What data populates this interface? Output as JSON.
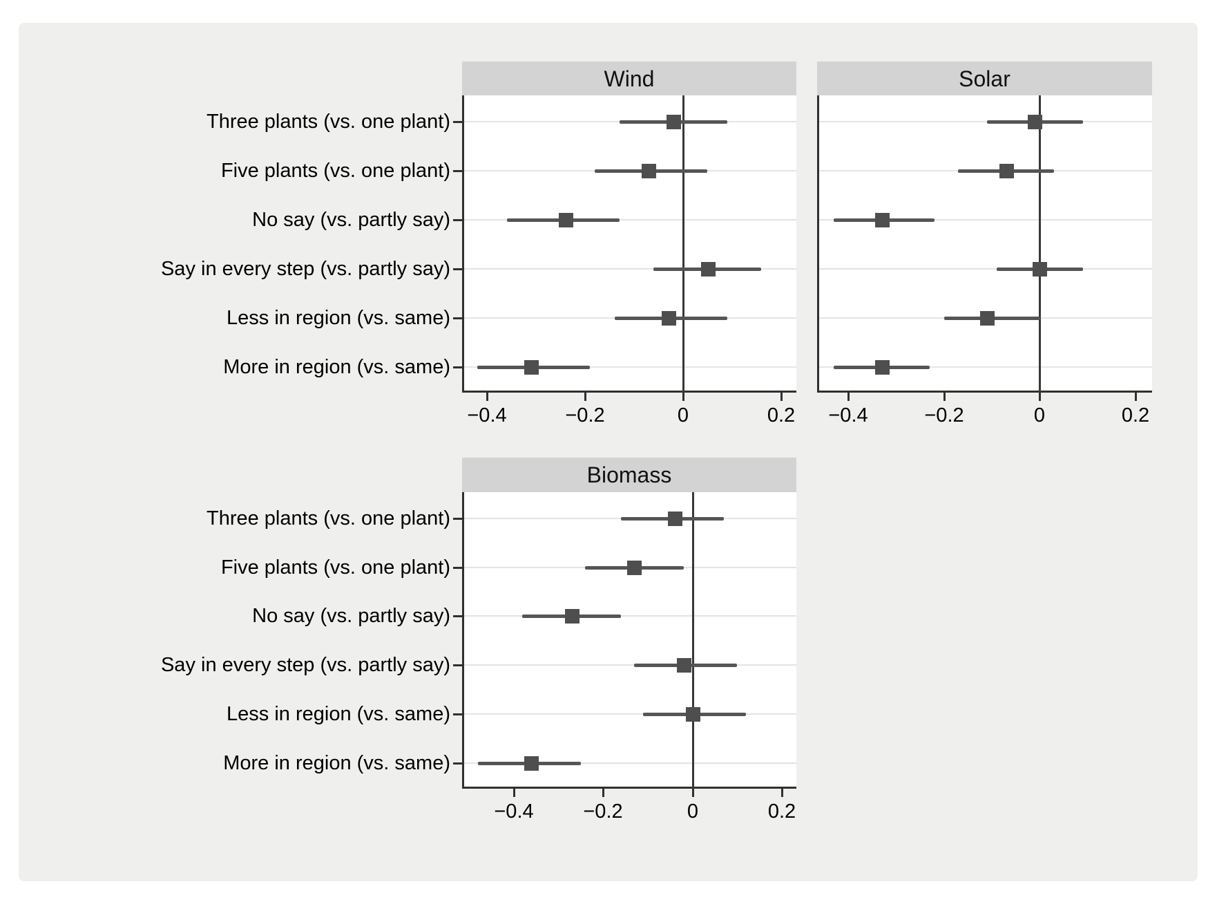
{
  "chart_data": {
    "type": "scatter",
    "subtype": "coefficient-plot-with-95ci",
    "panels_layout": "2x2-grid-last-cell-empty",
    "grid": "horizontal-gridline-per-category",
    "legend": "none",
    "marker": "square",
    "categories": [
      "Three plants (vs. one plant)",
      "Five plants (vs. one plant)",
      "No say (vs. partly say)",
      "Say in every step (vs. partly say)",
      "Less in region (vs. same)",
      "More in region (vs. same)"
    ],
    "x_ticks": [
      -0.4,
      -0.2,
      0,
      0.2
    ],
    "x_tick_labels": [
      "−0.4",
      "−0.2",
      "0",
      "0.2"
    ],
    "panels": [
      {
        "title": "Wind",
        "xlim": [
          -0.451,
          0.231
        ],
        "estimates": [
          -0.02,
          -0.07,
          -0.24,
          0.05,
          -0.03,
          -0.31
        ],
        "ci_low": [
          -0.13,
          -0.18,
          -0.36,
          -0.06,
          -0.14,
          -0.42
        ],
        "ci_high": [
          0.09,
          0.05,
          -0.13,
          0.16,
          0.09,
          -0.19
        ]
      },
      {
        "title": "Solar",
        "xlim": [
          -0.465,
          0.235
        ],
        "estimates": [
          -0.01,
          -0.07,
          -0.33,
          0.0,
          -0.11,
          -0.33
        ],
        "ci_low": [
          -0.11,
          -0.17,
          -0.43,
          -0.09,
          -0.2,
          -0.43
        ],
        "ci_high": [
          0.09,
          0.03,
          -0.22,
          0.09,
          0.0,
          -0.23
        ]
      },
      {
        "title": "Biomass",
        "xlim": [
          -0.515,
          0.232
        ],
        "estimates": [
          -0.04,
          -0.13,
          -0.27,
          -0.02,
          0.0,
          -0.36
        ],
        "ci_low": [
          -0.16,
          -0.24,
          -0.38,
          -0.13,
          -0.11,
          -0.48
        ],
        "ci_high": [
          0.07,
          -0.02,
          -0.16,
          0.1,
          0.12,
          -0.25
        ]
      }
    ]
  },
  "colors": {
    "page_bg": "#ffffff",
    "figure_bg": "#efefee",
    "header_bg": "#d3d3d3",
    "plot_bg": "#ffffff",
    "axis_line": "#303030",
    "grid_line": "#e4e4e4",
    "zero_line": "#383838",
    "marker": "#4e4e4e",
    "ci_line": "#555555",
    "text": "#000000"
  }
}
